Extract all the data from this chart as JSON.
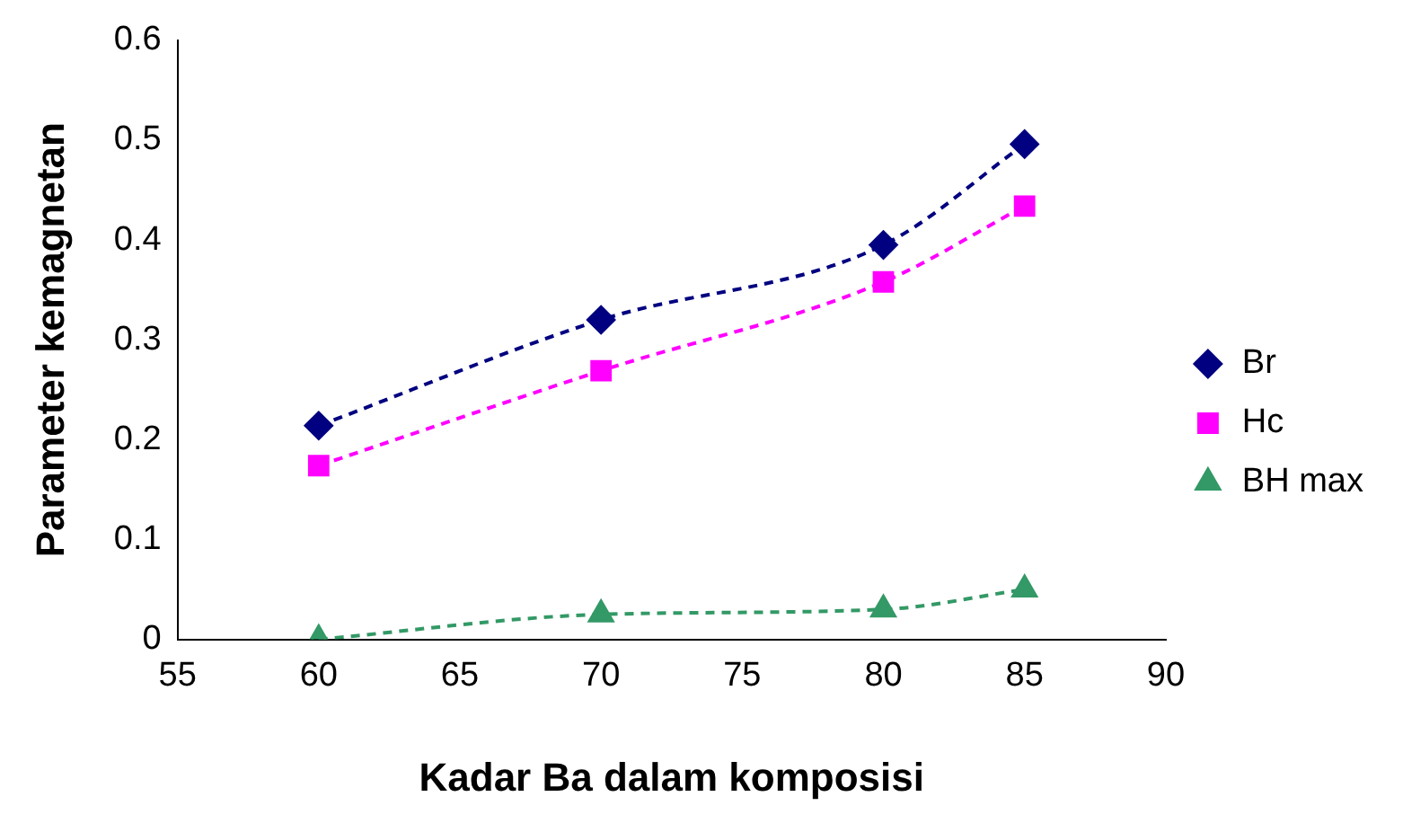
{
  "chart_data": {
    "type": "line",
    "xlabel": "Kadar Ba dalam komposisi",
    "ylabel": "Parameter kemagnetan",
    "x": [
      60,
      70,
      80,
      85
    ],
    "series": [
      {
        "name": "Br",
        "color": "#000080",
        "values": [
          0.214,
          0.32,
          0.395,
          0.496
        ],
        "marker": "diamond"
      },
      {
        "name": "Hc",
        "color": "#ff00ff",
        "values": [
          0.174,
          0.269,
          0.358,
          0.434
        ],
        "marker": "square"
      },
      {
        "name": "BH max",
        "color": "#339966",
        "values": [
          0,
          0.025,
          0.03,
          0.05
        ],
        "marker": "triangle"
      }
    ],
    "xlim": [
      55,
      90
    ],
    "xticks": [
      55,
      60,
      65,
      70,
      75,
      80,
      85,
      90
    ],
    "ylim": [
      0,
      0.6
    ],
    "yticks": [
      0,
      0.1,
      0.2,
      0.3,
      0.4,
      0.5,
      0.6
    ],
    "grid": false,
    "legend": "right",
    "line_style": "dashed"
  }
}
